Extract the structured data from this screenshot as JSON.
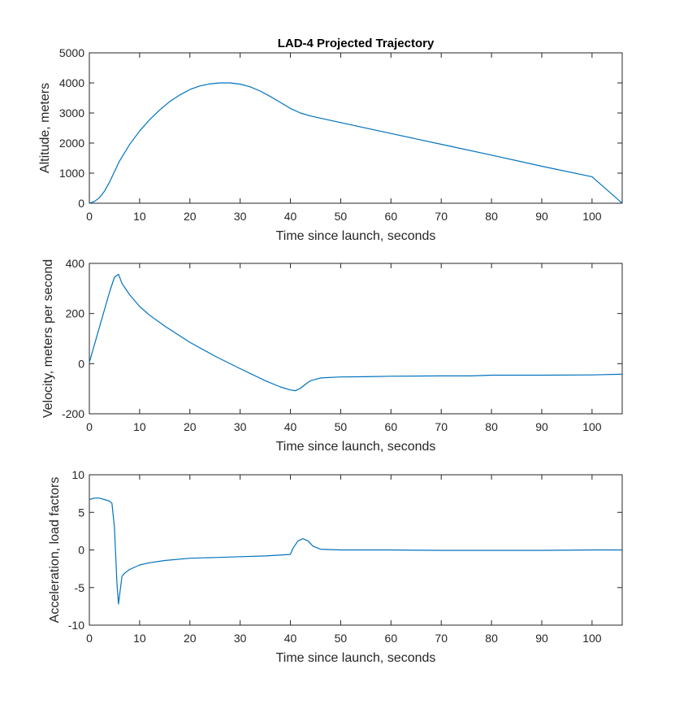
{
  "figure": {
    "title": "LAD-4 Projected Trajectory",
    "line_color": "#0072BD"
  },
  "chart_data": [
    {
      "type": "line",
      "title": "LAD-4 Projected Trajectory",
      "xlabel": "Time since launch, seconds",
      "ylabel": "Altitude, meters",
      "xlim": [
        0,
        106
      ],
      "ylim": [
        0,
        5000
      ],
      "xticks": [
        0,
        10,
        20,
        30,
        40,
        50,
        60,
        70,
        80,
        90,
        100
      ],
      "yticks": [
        0,
        1000,
        2000,
        3000,
        4000,
        5000
      ],
      "grid": false,
      "series": [
        {
          "x": [
            0,
            1,
            2,
            3,
            4,
            5,
            6,
            8,
            10,
            12,
            14,
            16,
            18,
            20,
            22,
            24,
            26,
            28,
            30,
            32,
            34,
            36,
            38,
            40,
            42,
            44,
            50,
            60,
            70,
            80,
            90,
            100,
            106
          ],
          "values": [
            0,
            60,
            180,
            400,
            700,
            1050,
            1400,
            1950,
            2400,
            2780,
            3100,
            3380,
            3600,
            3780,
            3900,
            3970,
            4000,
            4000,
            3960,
            3870,
            3730,
            3550,
            3350,
            3150,
            3000,
            2900,
            2680,
            2320,
            1960,
            1600,
            1230,
            880,
            0
          ]
        }
      ]
    },
    {
      "type": "line",
      "title": "",
      "xlabel": "Time since launch, seconds",
      "ylabel": "Velocity, meters per second",
      "xlim": [
        0,
        106
      ],
      "ylim": [
        -200,
        400
      ],
      "xticks": [
        0,
        10,
        20,
        30,
        40,
        50,
        60,
        70,
        80,
        90,
        100
      ],
      "yticks": [
        -200,
        0,
        200,
        400
      ],
      "grid": false,
      "series": [
        {
          "x": [
            0,
            1,
            2,
            3,
            4,
            5,
            5.8,
            6.5,
            8,
            10,
            12,
            15,
            20,
            25,
            30,
            35,
            38,
            40,
            41,
            42,
            43,
            44,
            46,
            50,
            55,
            60,
            70,
            76,
            80,
            90,
            100,
            106
          ],
          "values": [
            5,
            75,
            145,
            215,
            285,
            345,
            357,
            320,
            275,
            228,
            193,
            150,
            85,
            30,
            -20,
            -68,
            -93,
            -105,
            -108,
            -98,
            -82,
            -68,
            -57,
            -53,
            -52,
            -50,
            -49,
            -49,
            -46,
            -46,
            -45,
            -42
          ]
        }
      ]
    },
    {
      "type": "line",
      "title": "",
      "xlabel": "Time since launch, seconds",
      "ylabel": "Acceleration, load factors",
      "xlim": [
        0,
        106
      ],
      "ylim": [
        -10,
        10
      ],
      "xticks": [
        0,
        10,
        20,
        30,
        40,
        50,
        60,
        70,
        80,
        90,
        100
      ],
      "yticks": [
        -10,
        -5,
        0,
        5,
        10
      ],
      "grid": false,
      "series": [
        {
          "x": [
            0,
            1,
            2,
            3,
            4,
            4.5,
            5,
            5.5,
            5.8,
            6.1,
            6.5,
            7,
            8,
            10,
            12,
            15,
            20,
            25,
            30,
            35,
            40,
            40.5,
            41.5,
            42.5,
            43.5,
            44.5,
            46,
            50,
            55,
            60,
            70,
            80,
            90,
            100,
            106
          ],
          "values": [
            6.7,
            6.9,
            6.9,
            6.7,
            6.5,
            6.2,
            3.0,
            -4.5,
            -7.2,
            -5.5,
            -3.5,
            -3.1,
            -2.6,
            -2.0,
            -1.7,
            -1.4,
            -1.1,
            -1.0,
            -0.9,
            -0.8,
            -0.6,
            0.2,
            1.2,
            1.5,
            1.2,
            0.5,
            0.1,
            0.0,
            0.0,
            0.0,
            -0.05,
            -0.05,
            -0.05,
            0.0,
            0.0
          ]
        }
      ]
    }
  ]
}
